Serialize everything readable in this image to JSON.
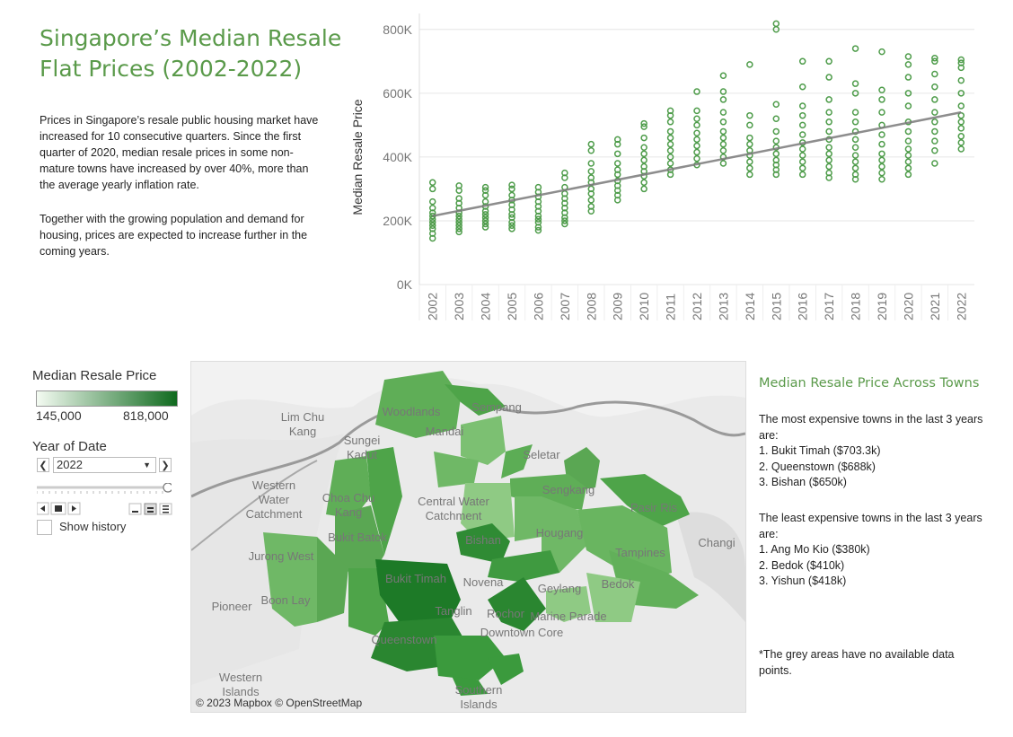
{
  "title": "Singapore’s Median Resale Flat Prices (2002-2022)",
  "intro_1": "Prices in Singapore’s resale public housing market have increased for 10 consecutive quarters.  Since the first quarter of 2020, median resale prices in some non-mature towns have increased by over 40%, more than the average yearly inflation rate.",
  "intro_2": "Together with the growing population and demand for housing, prices are expected to increase further in the coming years.",
  "legend": {
    "title": "Median Resale Price",
    "min_label": "145,000",
    "max_label": "818,000",
    "color_min": "#f4fbf2",
    "color_max": "#0f6a1e"
  },
  "year_filter": {
    "title": "Year of Date",
    "selected": "2022",
    "prev_glyph": "❮",
    "next_glyph": "❯",
    "show_history_label": "Show history"
  },
  "map": {
    "attribution": "© 2023 Mapbox © OpenStreetMap",
    "place_labels": [
      "Woodlands",
      "Sempang",
      "Mandai",
      "Lim Chu Kang",
      "Sungei Kadut",
      "Seletar",
      "Western Water Catchment",
      "Choa Chu Kang",
      "Central Water Catchment",
      "Sengkang",
      "Pasir Ris",
      "Changi",
      "Bukit Batok",
      "Bishan",
      "Hougang",
      "Tampines",
      "Jurong West",
      "Bukit Timah",
      "Novena",
      "Geylang",
      "Bedok",
      "Boon Lay",
      "Pioneer",
      "Tanglin",
      "Rochor",
      "Marine Parade",
      "Queenstown",
      "Downtown Core",
      "Western Islands",
      "Southern Islands"
    ]
  },
  "right_panel": {
    "title": "Median Resale Price Across Towns",
    "expensive_intro": "The most expensive towns in the last 3 years are:",
    "expensive": [
      "1. Bukit Timah ($703.3k)",
      "2. Queenstown ($688k)",
      "3. Bishan ($650k)"
    ],
    "cheap_intro": "The least expensive towns in the last 3 years are:",
    "cheap": [
      "1. Ang Mo Kio ($380k)",
      "2. Bedok ($410k)",
      "3. Yishun  ($418k)"
    ],
    "footnote": "*The grey areas have no available data points."
  },
  "chart_data": {
    "type": "scatter",
    "title": "",
    "xlabel": "",
    "ylabel": "Median Resale Price",
    "ylim": [
      0,
      850000
    ],
    "yticks": [
      0,
      200000,
      400000,
      600000,
      800000
    ],
    "ytick_labels": [
      "0K",
      "200K",
      "400K",
      "600K",
      "800K"
    ],
    "x": [
      "2002",
      "2003",
      "2004",
      "2005",
      "2006",
      "2007",
      "2008",
      "2009",
      "2010",
      "2011",
      "2012",
      "2013",
      "2014",
      "2015",
      "2016",
      "2017",
      "2018",
      "2019",
      "2020",
      "2021",
      "2022"
    ],
    "series": [
      {
        "name": "2002",
        "values": [
          145000,
          160000,
          175000,
          185000,
          195000,
          205000,
          215000,
          225000,
          240000,
          260000,
          300000,
          320000
        ]
      },
      {
        "name": "2003",
        "values": [
          165000,
          175000,
          185000,
          195000,
          205000,
          215000,
          225000,
          240000,
          255000,
          270000,
          295000,
          310000
        ]
      },
      {
        "name": "2004",
        "values": [
          180000,
          190000,
          200000,
          210000,
          220000,
          230000,
          245000,
          260000,
          280000,
          295000,
          305000
        ]
      },
      {
        "name": "2005",
        "values": [
          175000,
          185000,
          195000,
          210000,
          220000,
          235000,
          250000,
          265000,
          280000,
          300000,
          312000
        ]
      },
      {
        "name": "2006",
        "values": [
          170000,
          180000,
          195000,
          205000,
          215000,
          230000,
          245000,
          260000,
          275000,
          290000,
          305000
        ]
      },
      {
        "name": "2007",
        "values": [
          190000,
          200000,
          210000,
          225000,
          240000,
          255000,
          270000,
          285000,
          305000,
          335000,
          350000
        ]
      },
      {
        "name": "2008",
        "values": [
          230000,
          245000,
          265000,
          285000,
          300000,
          320000,
          335000,
          355000,
          380000,
          420000,
          440000
        ]
      },
      {
        "name": "2009",
        "values": [
          265000,
          280000,
          295000,
          310000,
          325000,
          345000,
          360000,
          380000,
          410000,
          440000,
          455000
        ]
      },
      {
        "name": "2010",
        "values": [
          300000,
          320000,
          340000,
          355000,
          370000,
          390000,
          410000,
          430000,
          460000,
          495000,
          505000
        ]
      },
      {
        "name": "2011",
        "values": [
          345000,
          360000,
          380000,
          400000,
          420000,
          440000,
          460000,
          480000,
          510000,
          530000,
          545000
        ]
      },
      {
        "name": "2012",
        "values": [
          375000,
          395000,
          415000,
          435000,
          455000,
          475000,
          500000,
          520000,
          545000,
          605000
        ]
      },
      {
        "name": "2013",
        "values": [
          380000,
          400000,
          420000,
          440000,
          460000,
          480000,
          510000,
          540000,
          580000,
          605000,
          655000
        ]
      },
      {
        "name": "2014",
        "values": [
          345000,
          365000,
          385000,
          405000,
          420000,
          440000,
          460000,
          500000,
          530000,
          690000
        ]
      },
      {
        "name": "2015",
        "values": [
          345000,
          360000,
          375000,
          390000,
          410000,
          430000,
          450000,
          480000,
          520000,
          565000,
          800000,
          818000
        ]
      },
      {
        "name": "2016",
        "values": [
          345000,
          365000,
          385000,
          405000,
          425000,
          445000,
          470000,
          500000,
          530000,
          560000,
          620000,
          700000
        ]
      },
      {
        "name": "2017",
        "values": [
          335000,
          350000,
          370000,
          390000,
          410000,
          430000,
          455000,
          480000,
          510000,
          540000,
          580000,
          650000,
          700000
        ]
      },
      {
        "name": "2018",
        "values": [
          330000,
          345000,
          365000,
          385000,
          405000,
          430000,
          455000,
          480000,
          510000,
          540000,
          600000,
          630000,
          740000
        ]
      },
      {
        "name": "2019",
        "values": [
          330000,
          350000,
          370000,
          390000,
          410000,
          440000,
          470000,
          500000,
          540000,
          580000,
          610000,
          730000
        ]
      },
      {
        "name": "2020",
        "values": [
          345000,
          365000,
          385000,
          405000,
          425000,
          450000,
          480000,
          510000,
          560000,
          600000,
          650000,
          690000,
          715000
        ]
      },
      {
        "name": "2021",
        "values": [
          380000,
          420000,
          450000,
          480000,
          510000,
          540000,
          580000,
          620000,
          660000,
          700000,
          710000
        ]
      },
      {
        "name": "2022",
        "values": [
          425000,
          445000,
          465000,
          490000,
          510000,
          530000,
          560000,
          600000,
          640000,
          680000,
          695000,
          705000
        ]
      }
    ],
    "trend_line": {
      "start": [
        "2002",
        215000
      ],
      "end": [
        "2022",
        540000
      ]
    },
    "colors": {
      "points": "#4e9c4a",
      "trend": "#7a7a7a",
      "grid": "#e6e6e6"
    }
  }
}
